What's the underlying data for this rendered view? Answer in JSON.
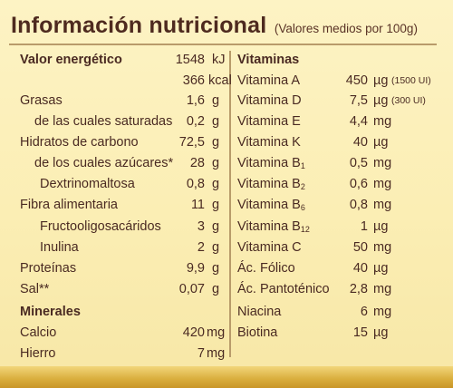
{
  "title": "Información nutricional",
  "subtitle": "(Valores medios por 100g)",
  "left": [
    {
      "label": "Valor energético",
      "value": "1548",
      "unit": "kJ",
      "bold": true
    },
    {
      "label": "",
      "value": "366",
      "unit": "kcal"
    },
    {
      "label": "Grasas",
      "value": "1,6",
      "unit": "g"
    },
    {
      "label": "de las cuales saturadas",
      "value": "0,2",
      "unit": "g",
      "indent": 2
    },
    {
      "label": "Hidratos de carbono",
      "value": "72,5",
      "unit": "g"
    },
    {
      "label": "de los cuales azúcares*",
      "value": "28",
      "unit": "g",
      "indent": 2
    },
    {
      "label": "Dextrinomaltosa",
      "value": "0,8",
      "unit": "g",
      "indent": 1
    },
    {
      "label": "Fibra alimentaria",
      "value": "11",
      "unit": "g"
    },
    {
      "label": "Fructooligosacáridos",
      "value": "3",
      "unit": "g",
      "indent": 1
    },
    {
      "label": "Inulina",
      "value": "2",
      "unit": "g",
      "indent": 1
    },
    {
      "label": "Proteínas",
      "value": "9,9",
      "unit": "g"
    },
    {
      "label": "Sal**",
      "value": "0,07",
      "unit": "g"
    },
    {
      "label": "Minerales",
      "value": "",
      "unit": "",
      "bold": true
    },
    {
      "label": "Calcio",
      "value": "420",
      "unit": "mg"
    },
    {
      "label": "Hierro",
      "value": "7",
      "unit": "mg"
    }
  ],
  "right_header": "Vitaminas",
  "right": [
    {
      "label": "Vitamina A",
      "sub": "",
      "value": "450",
      "unit": "µg",
      "note": "(1500 UI)"
    },
    {
      "label": "Vitamina D",
      "sub": "",
      "value": "7,5",
      "unit": "µg",
      "note": "(300 UI)"
    },
    {
      "label": "Vitamina E",
      "sub": "",
      "value": "4,4",
      "unit": "mg",
      "note": ""
    },
    {
      "label": "Vitamina K",
      "sub": "",
      "value": "40",
      "unit": "µg",
      "note": ""
    },
    {
      "label": "Vitamina B",
      "sub": "1",
      "value": "0,5",
      "unit": "mg",
      "note": ""
    },
    {
      "label": "Vitamina B",
      "sub": "2",
      "value": "0,6",
      "unit": "mg",
      "note": ""
    },
    {
      "label": "Vitamina B",
      "sub": "6",
      "value": "0,8",
      "unit": "mg",
      "note": ""
    },
    {
      "label": "Vitamina B",
      "sub": "12",
      "value": "1",
      "unit": "µg",
      "note": ""
    },
    {
      "label": "Vitamina C",
      "sub": "",
      "value": "50",
      "unit": "mg",
      "note": ""
    },
    {
      "label": "Ác. Fólico",
      "sub": "",
      "value": "40",
      "unit": "µg",
      "note": ""
    },
    {
      "label": "Ác. Pantoténico",
      "sub": "",
      "value": "2,8",
      "unit": "mg",
      "note": ""
    },
    {
      "label": "Niacina",
      "sub": "",
      "value": "6",
      "unit": "mg",
      "note": ""
    },
    {
      "label": "Biotina",
      "sub": "",
      "value": "15",
      "unit": "µg",
      "note": ""
    }
  ]
}
